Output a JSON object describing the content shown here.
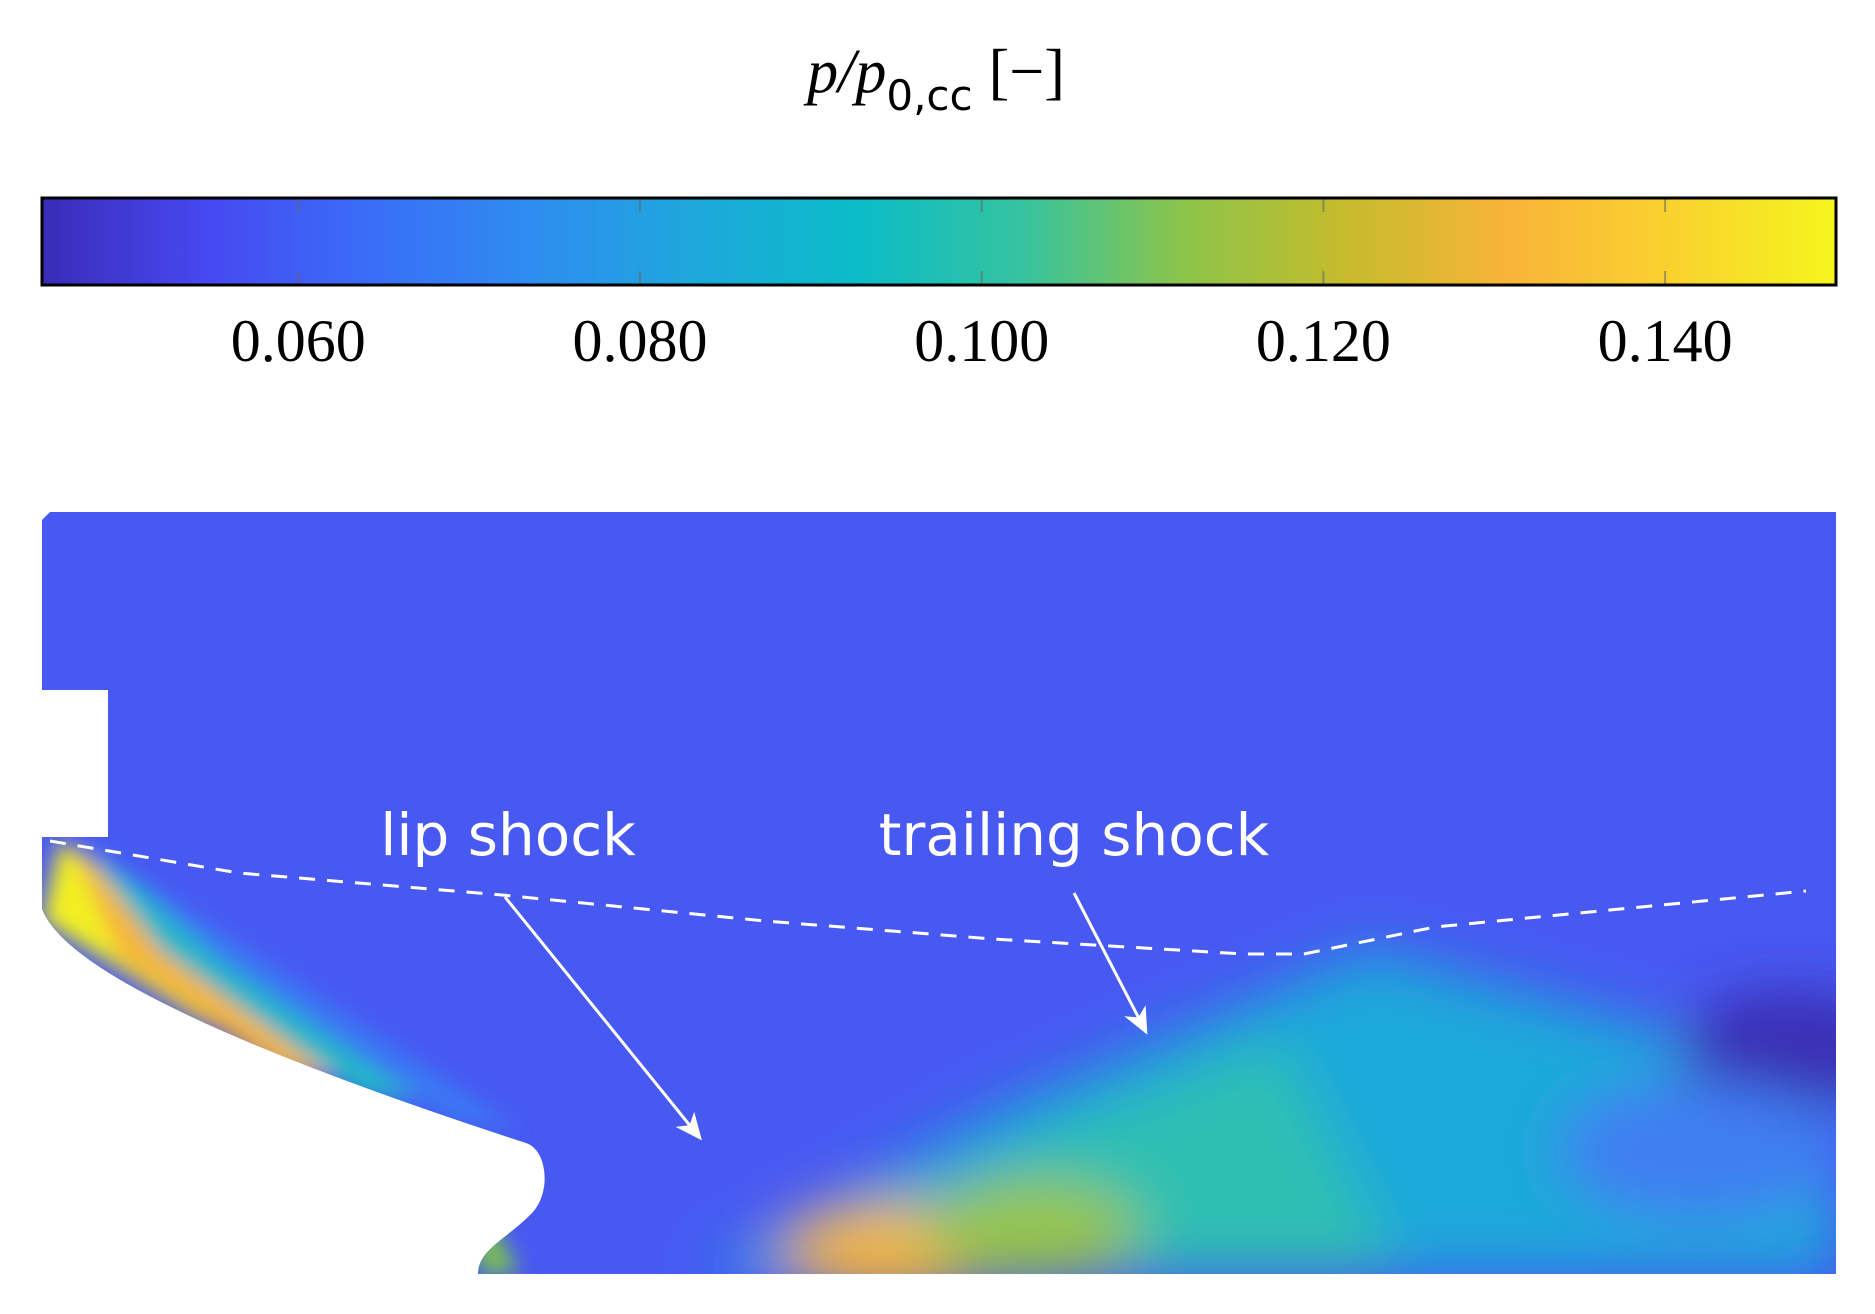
{
  "chart_data": {
    "type": "colormap",
    "colorbar": {
      "label": "p/p",
      "label_sub": "0,cc",
      "label_unit": "[−]",
      "clim": [
        0.045,
        0.15
      ],
      "ticks": [
        {
          "value": 0.06,
          "label": "0.060"
        },
        {
          "value": 0.08,
          "label": "0.080"
        },
        {
          "value": 0.1,
          "label": "0.100"
        },
        {
          "value": 0.12,
          "label": "0.120"
        },
        {
          "value": 0.14,
          "label": "0.140"
        }
      ],
      "colormap": [
        "#3a2cb8",
        "#4748f0",
        "#3a6df8",
        "#2f8cf0",
        "#1ea8dc",
        "#0bbcc8",
        "#35c3a0",
        "#8cc44a",
        "#c6bb2c",
        "#f9b43a",
        "#f9d22e",
        "#f5f51e"
      ]
    },
    "annotations": [
      "lip shock",
      "trailing shock"
    ]
  }
}
